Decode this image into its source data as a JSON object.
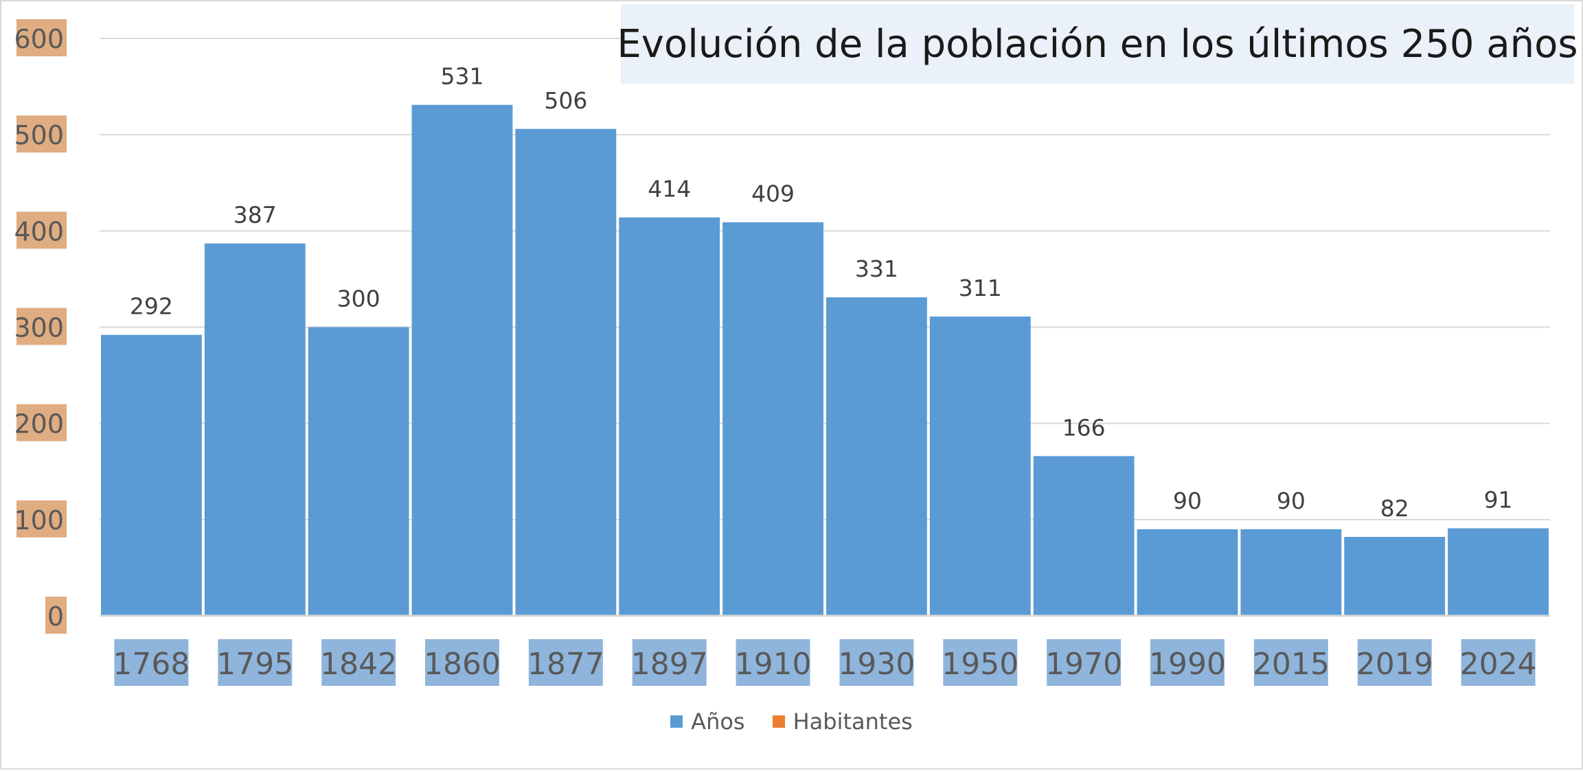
{
  "chart_data": {
    "type": "bar",
    "title": "Evolución de la población en los últimos 250 años",
    "categories": [
      "1768",
      "1795",
      "1842",
      "1860",
      "1877",
      "1897",
      "1910",
      "1930",
      "1950",
      "1970",
      "1990",
      "2015",
      "2019",
      "2024"
    ],
    "series": [
      {
        "name": "Años",
        "values": [
          292,
          387,
          300,
          531,
          506,
          414,
          409,
          331,
          311,
          166,
          90,
          90,
          82,
          91
        ],
        "color": "#5b9bd5"
      }
    ],
    "legend": [
      {
        "name": "Años",
        "color": "#5b9bd5"
      },
      {
        "name": "Habitantes",
        "color": "#ed7d31"
      }
    ],
    "xlabel": "",
    "ylabel": "",
    "ylim": [
      0,
      600
    ],
    "yticks": [
      0,
      100,
      200,
      300,
      400,
      500,
      600
    ],
    "grid": true,
    "legend_position": "bottom",
    "colors": {
      "bar": "#5b9bd5",
      "y_tick_bg": "#e0ac82",
      "x_tick_bg": "#8fb5dc",
      "title_bg": "#eaf1f8"
    }
  }
}
